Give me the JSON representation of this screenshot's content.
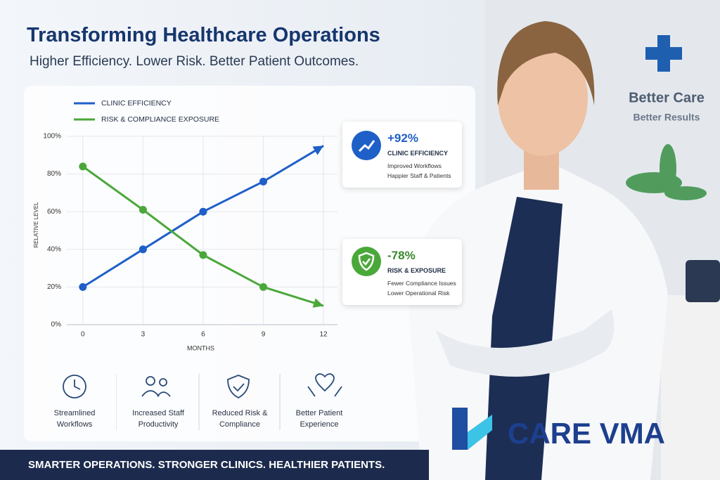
{
  "header": {
    "title": "Transforming Healthcare Operations",
    "subtitle": "Higher Efficiency. Lower Risk. Better Patient Outcomes."
  },
  "chart_data": {
    "type": "line",
    "xlabel": "MONTHS",
    "ylabel": "RELATIVE LEVEL",
    "x": [
      0,
      3,
      6,
      9,
      12
    ],
    "series": [
      {
        "name": "CLINIC EFFICIENCY",
        "color": "#1f5fc8",
        "values": [
          20,
          40,
          60,
          76,
          95
        ]
      },
      {
        "name": "RISK & COMPLIANCE EXPOSURE",
        "color": "#4aa83a",
        "values": [
          84,
          61,
          37,
          20,
          10
        ]
      }
    ],
    "xlim": [
      -0.8,
      12.7
    ],
    "ylim": [
      0,
      100
    ],
    "xticks": [
      0,
      3,
      6,
      9,
      12
    ],
    "yticks": [
      {
        "value": 0,
        "label": "0%"
      },
      {
        "value": 20,
        "label": "20%"
      },
      {
        "value": 40,
        "label": "40%"
      },
      {
        "value": 60,
        "label": "60%"
      },
      {
        "value": 80,
        "label": "80%"
      },
      {
        "value": 100,
        "label": "100%"
      }
    ],
    "grid": true
  },
  "callouts": [
    {
      "value": "+92%",
      "title": "CLINIC EFFICIENCY",
      "lines": [
        "Improved Workflows",
        "Happier Staff & Patients"
      ]
    },
    {
      "value": "-78%",
      "title": "RISK & EXPOSURE",
      "lines": [
        "Fewer Compliance Issues",
        "Lower Operational Risk"
      ]
    }
  ],
  "features": [
    "Streamlined Workflows",
    "Increased Staff Productivity",
    "Reduced Risk & Compliance",
    "Better Patient Experience"
  ],
  "footer": "SMARTER OPERATIONS. STRONGER CLINICS. HEALTHIER PATIENTS.",
  "brand": "CARE VMA",
  "sign": {
    "line1": "Better Care",
    "line2": "Better Results"
  }
}
